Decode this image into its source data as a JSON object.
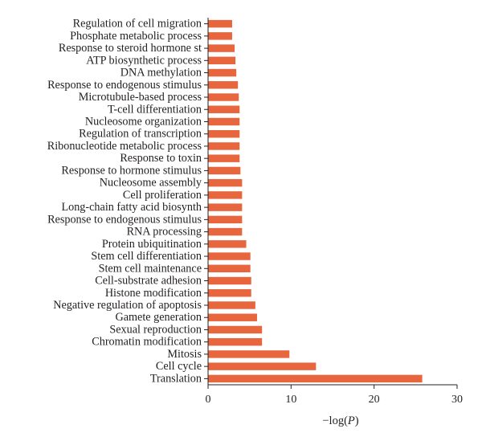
{
  "chart_data": {
    "type": "bar",
    "orientation": "horizontal",
    "categories": [
      "Regulation of cell migration",
      "Phosphate metabolic process",
      "Response to steroid hormone st",
      "ATP biosynthetic process",
      "DNA methylation",
      "Response to endogenous stimulus",
      "Microtubule-based process",
      "T-cell differentiation",
      "Nucleosome organization",
      "Regulation of transcription",
      "Ribonucleotide metabolic process",
      "Response to toxin",
      "Response to hormone stimulus",
      "Nucleosome assembly",
      "Cell proliferation",
      "Long-chain fatty acid biosynth",
      "Response to endogenous stimulus",
      "RNA processing",
      "Protein ubiquitination",
      "Stem cell differentiation",
      "Stem cell maintenance",
      "Cell-substrate adhesion",
      "Histone modification",
      "Negative regulation of apoptosis",
      "Gamete generation",
      "Sexual reproduction",
      "Chromatin modification",
      "Mitosis",
      "Cell cycle",
      "Translation"
    ],
    "values": [
      2.9,
      2.9,
      3.2,
      3.3,
      3.4,
      3.6,
      3.7,
      3.8,
      3.8,
      3.8,
      3.8,
      3.8,
      3.9,
      4.1,
      4.1,
      4.1,
      4.1,
      4.1,
      4.6,
      5.1,
      5.1,
      5.2,
      5.2,
      5.7,
      5.9,
      6.5,
      6.5,
      9.8,
      13.0,
      25.8
    ],
    "xlabel": "−log(P)",
    "xlabel_main": "−log(",
    "xlabel_italic": "P",
    "xlabel_close": ")",
    "xlim": [
      0,
      30
    ],
    "xticks": [
      0,
      10,
      20,
      30
    ],
    "xtick_labels": [
      "0",
      "10",
      "20",
      "30"
    ],
    "grid": false,
    "bar_color": "#e8663e",
    "axis_color": "#231f20"
  }
}
